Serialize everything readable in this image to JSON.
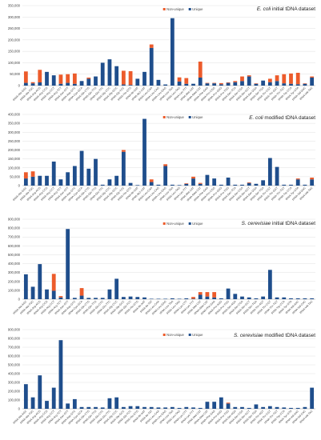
{
  "colors": {
    "unique": "#1f4e8c",
    "non_unique": "#ec5b2b",
    "grid": "#e0e0e0",
    "axis": "#9a9a9a",
    "text": "#222222",
    "tick": "#444444"
  },
  "chart_data": [
    {
      "type": "bar",
      "stacked": true,
      "title": "E. coli initial tDNA dataset",
      "title_italic": "E. coli",
      "title_rest": " initial tDNA dataset",
      "legend": [
        "Non-unique",
        "Unique"
      ],
      "legend_position": "top-right",
      "grid": true,
      "ylim": [
        0,
        350000
      ],
      "yticks": [
        "0",
        "50,000",
        "100,000",
        "150,000",
        "200,000",
        "250,000",
        "300,000",
        "350,000"
      ],
      "categories": [
        "tRNA-Ala-GGC",
        "tRNA-Ala-TGC",
        "tRNA-Arg-ACG",
        "tRNA-Arg-CCG",
        "tRNA-Arg-CCT",
        "tRNA-Arg-TCT",
        "tRNA-Asn-GTT",
        "tRNA-Asp-GTC",
        "tRNA-Cys-GCA",
        "tRNA-Gln-CTG",
        "tRNA-Gln-TTG",
        "tRNA-Glu-TTC",
        "tRNA-Gly-CCC",
        "tRNA-Gly-GCC",
        "tRNA-Gly-TCC",
        "tRNA-His-GTG",
        "tRNA-Ile-GAT",
        "tRNA-Ile2-CAT",
        "tRNA-Leu-CAA",
        "tRNA-Leu-CAG",
        "tRNA-Leu-GAG",
        "tRNA-Leu-TAA",
        "tRNA-Leu-TAG",
        "tRNA-Lys-TTT",
        "tRNA-Met-CAT",
        "tRNA-fMet-CAT",
        "tRNA-Phe-GAA",
        "tRNA-Pro-CGG",
        "tRNA-Pro-GGG",
        "tRNA-Pro-TGG",
        "tRNA-Sec-TCA",
        "tRNA-Ser-CGA",
        "tRNA-Ser-GCT",
        "tRNA-Ser-GGA",
        "tRNA-Ser-TGA",
        "tRNA-Thr-CGT",
        "tRNA-Thr-GGT",
        "tRNA-Thr-TGT",
        "tRNA-Trp-CCA",
        "tRNA-Tyr-GTA",
        "tRNA-Val-GAC",
        "tRNA-Val-TAC"
      ],
      "series": [
        {
          "name": "Unique",
          "values": [
            12000,
            10000,
            14000,
            60000,
            45000,
            8000,
            12000,
            8000,
            20000,
            30000,
            40000,
            100000,
            115000,
            85000,
            5000,
            3000,
            30000,
            60000,
            165000,
            25000,
            5000,
            295000,
            18000,
            8000,
            8000,
            35000,
            10000,
            10000,
            6000,
            12000,
            15000,
            20000,
            40000,
            8000,
            22000,
            15000,
            20000,
            10000,
            8000,
            6000,
            8000,
            35000
          ]
        },
        {
          "name": "Non-unique",
          "values": [
            50000,
            5000,
            55000,
            0,
            0,
            40000,
            38000,
            45000,
            0,
            5000,
            0,
            0,
            0,
            0,
            60000,
            60000,
            0,
            0,
            15000,
            0,
            0,
            0,
            18000,
            25000,
            0,
            70000,
            2000,
            2000,
            5000,
            2000,
            5000,
            20000,
            5000,
            2000,
            0,
            15000,
            25000,
            40000,
            45000,
            50000,
            2000,
            5000
          ]
        }
      ]
    },
    {
      "type": "bar",
      "stacked": true,
      "title": "E. coli modified tDNA dataset",
      "title_italic": "E. coli",
      "title_rest": " modified tDNA dataset",
      "legend": [
        "Non-unique",
        "Unique"
      ],
      "legend_position": "top-right",
      "grid": true,
      "ylim": [
        0,
        400000
      ],
      "yticks": [
        "0",
        "50,000",
        "100,000",
        "150,000",
        "200,000",
        "250,000",
        "300,000",
        "350,000",
        "400,000"
      ],
      "categories": [
        "tRNA-Ala-GGC",
        "tRNA-Ala-TGC",
        "tRNA-Arg-ACG",
        "tRNA-Arg-CCG",
        "tRNA-Arg-CCT",
        "tRNA-Arg-TCT",
        "tRNA-Asn-GTT",
        "tRNA-Asp-GTC",
        "tRNA-Cys-GCA",
        "tRNA-Gln-CTG",
        "tRNA-Gln-TTG",
        "tRNA-Glu-TTC",
        "tRNA-Gly-CCC",
        "tRNA-Gly-GCC",
        "tRNA-Gly-TCC",
        "tRNA-His-GTG",
        "tRNA-Ile-GAT",
        "tRNA-Ile2-CAT",
        "tRNA-Leu-CAA",
        "tRNA-Leu-CAG",
        "tRNA-Leu-GAG",
        "tRNA-Leu-TAA",
        "tRNA-Leu-TAG",
        "tRNA-Lys-TTT",
        "tRNA-Met-CAT",
        "tRNA-fMet-CAT",
        "tRNA-Phe-GAA",
        "tRNA-Pro-CGG",
        "tRNA-Pro-GGG",
        "tRNA-Pro-TGG",
        "tRNA-Sec-TCA",
        "tRNA-Ser-CGA",
        "tRNA-Ser-GCT",
        "tRNA-Ser-GGA",
        "tRNA-Ser-TGA",
        "tRNA-Thr-CGT",
        "tRNA-Thr-GGT",
        "tRNA-Thr-TGT",
        "tRNA-Trp-CCA",
        "tRNA-Tyr-GTA",
        "tRNA-Val-GAC",
        "tRNA-Val-TAC"
      ],
      "series": [
        {
          "name": "Unique",
          "values": [
            40000,
            50000,
            55000,
            55000,
            135000,
            35000,
            75000,
            110000,
            195000,
            95000,
            150000,
            5000,
            35000,
            55000,
            190000,
            15000,
            3000,
            375000,
            20000,
            5000,
            110000,
            5000,
            3000,
            10000,
            40000,
            10000,
            60000,
            40000,
            5000,
            45000,
            5000,
            5000,
            15000,
            10000,
            30000,
            155000,
            105000,
            5000,
            5000,
            35000,
            5000,
            35000
          ]
        },
        {
          "name": "Non-unique",
          "values": [
            35000,
            30000,
            0,
            0,
            0,
            0,
            0,
            0,
            0,
            0,
            0,
            0,
            0,
            0,
            10000,
            0,
            0,
            0,
            15000,
            0,
            10000,
            0,
            0,
            3000,
            10000,
            5000,
            0,
            0,
            0,
            0,
            0,
            0,
            3000,
            0,
            0,
            0,
            0,
            0,
            0,
            5000,
            0,
            10000
          ]
        }
      ]
    },
    {
      "type": "bar",
      "stacked": true,
      "title": "S. cerevisiae initial tDNA dataset",
      "title_italic": "S. cerevisiae",
      "title_rest": " initial tDNA dataset",
      "legend": [
        "Non-unique",
        "Unique"
      ],
      "legend_position": "top-right",
      "grid": true,
      "ylim": [
        0,
        900000
      ],
      "yticks": [
        "0",
        "100,000",
        "200,000",
        "300,000",
        "400,000",
        "500,000",
        "600,000",
        "700,000",
        "800,000",
        "900,000"
      ],
      "categories": [
        "tRNA-Ala-AGC",
        "tRNA-Ala-TGC",
        "tRNA-Arg-ACG",
        "tRNA-Arg-CCG",
        "tRNA-Arg-CCT",
        "tRNA-Arg-TCT",
        "tRNA-Asn-GTT",
        "tRNA-Asp-GTC",
        "tRNA-Cys-GCA",
        "tRNA-Gln-CTG",
        "tRNA-Gln-TTG",
        "tRNA-Glu-CTC",
        "tRNA-Glu-TTC",
        "tRNA-Gly-CCC",
        "tRNA-Gly-GCC",
        "tRNA-Gly-TCC",
        "tRNA-His-GTG",
        "tRNA-Ile-AAT",
        "tRNA-Ile-TAT",
        "tRNA-Leu-CAA",
        "tRNA-Leu-GAG",
        "tRNA-Leu-TAA",
        "tRNA-Leu-TAG",
        "tRNA-Lys-CTT",
        "tRNA-Lys-TTT",
        "tRNA-Met-CAT",
        "tRNA-iMet-CAT",
        "tRNA-Phe-GAA",
        "tRNA-Pro-AGG",
        "tRNA-Pro-TGG",
        "tRNA-Ser-AGA",
        "tRNA-Ser-CGA",
        "tRNA-Ser-GCT",
        "tRNA-Ser-TGA",
        "tRNA-Thr-AGT",
        "tRNA-Thr-CGT",
        "tRNA-Thr-TGT",
        "tRNA-Trp-CCA",
        "tRNA-Tyr-GTA",
        "tRNA-Val-AAC",
        "tRNA-Val-CAC",
        "tRNA-Val-TAC"
      ],
      "series": [
        {
          "name": "Unique",
          "values": [
            280000,
            140000,
            395000,
            110000,
            95000,
            20000,
            790000,
            15000,
            40000,
            15000,
            15000,
            15000,
            110000,
            230000,
            25000,
            30000,
            25000,
            20000,
            5000,
            5000,
            5000,
            10000,
            5000,
            10000,
            5000,
            50000,
            30000,
            20000,
            10000,
            120000,
            60000,
            30000,
            20000,
            10000,
            30000,
            330000,
            20000,
            20000,
            10000,
            10000,
            10000,
            10000
          ]
        },
        {
          "name": "Non-unique",
          "values": [
            0,
            0,
            0,
            0,
            190000,
            15000,
            0,
            0,
            85000,
            0,
            0,
            0,
            0,
            0,
            0,
            0,
            0,
            0,
            0,
            0,
            0,
            0,
            0,
            0,
            20000,
            30000,
            50000,
            60000,
            0,
            0,
            0,
            0,
            0,
            0,
            0,
            0,
            0,
            0,
            0,
            0,
            0,
            0
          ]
        }
      ]
    },
    {
      "type": "bar",
      "stacked": true,
      "title": "S. cerevisiae modified tDNA dataset",
      "title_italic": "S. cerevisiae",
      "title_rest": " modified tDNA dataset",
      "legend": [
        "Non-unique",
        "Unique"
      ],
      "legend_position": "top-right",
      "grid": true,
      "ylim": [
        0,
        900000
      ],
      "yticks": [
        "0",
        "100,000",
        "200,000",
        "300,000",
        "400,000",
        "500,000",
        "600,000",
        "700,000",
        "800,000",
        "900,000"
      ],
      "categories": [
        "tRNA-Ala-AGC",
        "tRNA-Ala-TGC",
        "tRNA-Arg-ACG",
        "tRNA-Arg-CCG",
        "tRNA-Arg-CCT",
        "tRNA-Arg-TCT",
        "tRNA-Asn-GTT",
        "tRNA-Asp-GTC",
        "tRNA-Cys-GCA",
        "tRNA-Gln-CTG",
        "tRNA-Gln-TTG",
        "tRNA-Glu-CTC",
        "tRNA-Glu-TTC",
        "tRNA-Gly-CCC",
        "tRNA-Gly-GCC",
        "tRNA-Gly-TCC",
        "tRNA-His-GTG",
        "tRNA-Ile-AAT",
        "tRNA-Ile-TAT",
        "tRNA-Leu-CAA",
        "tRNA-Leu-GAG",
        "tRNA-Leu-TAA",
        "tRNA-Leu-TAG",
        "tRNA-Lys-CTT",
        "tRNA-Lys-TTT",
        "tRNA-Met-CAT",
        "tRNA-iMet-CAT",
        "tRNA-Phe-GAA",
        "tRNA-Pro-AGG",
        "tRNA-Pro-TGG",
        "tRNA-Ser-AGA",
        "tRNA-Ser-CGA",
        "tRNA-Ser-GCT",
        "tRNA-Ser-TGA",
        "tRNA-Thr-AGT",
        "tRNA-Thr-CGT",
        "tRNA-Thr-TGT",
        "tRNA-Trp-CCA",
        "tRNA-Tyr-GTA",
        "tRNA-Val-AAC",
        "tRNA-Val-CAC",
        "tRNA-Val-TAC"
      ],
      "series": [
        {
          "name": "Unique",
          "values": [
            280000,
            130000,
            380000,
            90000,
            240000,
            780000,
            60000,
            110000,
            20000,
            20000,
            20000,
            15000,
            120000,
            130000,
            20000,
            30000,
            30000,
            20000,
            20000,
            15000,
            15000,
            20000,
            10000,
            20000,
            15000,
            10000,
            80000,
            80000,
            130000,
            60000,
            20000,
            20000,
            10000,
            50000,
            20000,
            30000,
            20000,
            15000,
            10000,
            10000,
            20000,
            240000
          ]
        },
        {
          "name": "Non-unique",
          "values": [
            0,
            0,
            0,
            0,
            0,
            0,
            0,
            0,
            0,
            0,
            0,
            0,
            0,
            0,
            0,
            0,
            0,
            0,
            0,
            0,
            0,
            0,
            0,
            0,
            0,
            0,
            0,
            0,
            0,
            10000,
            0,
            0,
            0,
            0,
            0,
            0,
            0,
            0,
            0,
            0,
            0,
            0
          ]
        }
      ]
    }
  ]
}
